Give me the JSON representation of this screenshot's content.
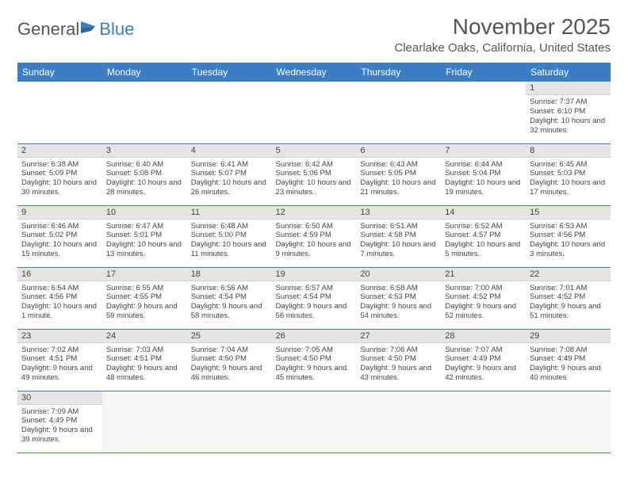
{
  "logo": {
    "text1": "General",
    "text2": "Blue"
  },
  "title": "November 2025",
  "location": "Clearlake Oaks, California, United States",
  "colors": {
    "header_bg": "#3a7fc4",
    "header_text": "#ffffff",
    "daynum_bg": "#e5e5e5",
    "row_border": "#3a7fc4",
    "text": "#444444"
  },
  "weekdays": [
    "Sunday",
    "Monday",
    "Tuesday",
    "Wednesday",
    "Thursday",
    "Friday",
    "Saturday"
  ],
  "weeks": [
    [
      null,
      null,
      null,
      null,
      null,
      null,
      {
        "n": "1",
        "sr": "7:37 AM",
        "ss": "6:10 PM",
        "dl": "10 hours and 32 minutes."
      }
    ],
    [
      {
        "n": "2",
        "sr": "6:38 AM",
        "ss": "5:09 PM",
        "dl": "10 hours and 30 minutes."
      },
      {
        "n": "3",
        "sr": "6:40 AM",
        "ss": "5:08 PM",
        "dl": "10 hours and 28 minutes."
      },
      {
        "n": "4",
        "sr": "6:41 AM",
        "ss": "5:07 PM",
        "dl": "10 hours and 26 minutes."
      },
      {
        "n": "5",
        "sr": "6:42 AM",
        "ss": "5:06 PM",
        "dl": "10 hours and 23 minutes."
      },
      {
        "n": "6",
        "sr": "6:43 AM",
        "ss": "5:05 PM",
        "dl": "10 hours and 21 minutes."
      },
      {
        "n": "7",
        "sr": "6:44 AM",
        "ss": "5:04 PM",
        "dl": "10 hours and 19 minutes."
      },
      {
        "n": "8",
        "sr": "6:45 AM",
        "ss": "5:03 PM",
        "dl": "10 hours and 17 minutes."
      }
    ],
    [
      {
        "n": "9",
        "sr": "6:46 AM",
        "ss": "5:02 PM",
        "dl": "10 hours and 15 minutes."
      },
      {
        "n": "10",
        "sr": "6:47 AM",
        "ss": "5:01 PM",
        "dl": "10 hours and 13 minutes."
      },
      {
        "n": "11",
        "sr": "6:48 AM",
        "ss": "5:00 PM",
        "dl": "10 hours and 11 minutes."
      },
      {
        "n": "12",
        "sr": "6:50 AM",
        "ss": "4:59 PM",
        "dl": "10 hours and 9 minutes."
      },
      {
        "n": "13",
        "sr": "6:51 AM",
        "ss": "4:58 PM",
        "dl": "10 hours and 7 minutes."
      },
      {
        "n": "14",
        "sr": "6:52 AM",
        "ss": "4:57 PM",
        "dl": "10 hours and 5 minutes."
      },
      {
        "n": "15",
        "sr": "6:53 AM",
        "ss": "4:56 PM",
        "dl": "10 hours and 3 minutes."
      }
    ],
    [
      {
        "n": "16",
        "sr": "6:54 AM",
        "ss": "4:56 PM",
        "dl": "10 hours and 1 minute."
      },
      {
        "n": "17",
        "sr": "6:55 AM",
        "ss": "4:55 PM",
        "dl": "9 hours and 59 minutes."
      },
      {
        "n": "18",
        "sr": "6:56 AM",
        "ss": "4:54 PM",
        "dl": "9 hours and 58 minutes."
      },
      {
        "n": "19",
        "sr": "6:57 AM",
        "ss": "4:54 PM",
        "dl": "9 hours and 56 minutes."
      },
      {
        "n": "20",
        "sr": "6:58 AM",
        "ss": "4:53 PM",
        "dl": "9 hours and 54 minutes."
      },
      {
        "n": "21",
        "sr": "7:00 AM",
        "ss": "4:52 PM",
        "dl": "9 hours and 52 minutes."
      },
      {
        "n": "22",
        "sr": "7:01 AM",
        "ss": "4:52 PM",
        "dl": "9 hours and 51 minutes."
      }
    ],
    [
      {
        "n": "23",
        "sr": "7:02 AM",
        "ss": "4:51 PM",
        "dl": "9 hours and 49 minutes."
      },
      {
        "n": "24",
        "sr": "7:03 AM",
        "ss": "4:51 PM",
        "dl": "9 hours and 48 minutes."
      },
      {
        "n": "25",
        "sr": "7:04 AM",
        "ss": "4:50 PM",
        "dl": "9 hours and 46 minutes."
      },
      {
        "n": "26",
        "sr": "7:05 AM",
        "ss": "4:50 PM",
        "dl": "9 hours and 45 minutes."
      },
      {
        "n": "27",
        "sr": "7:06 AM",
        "ss": "4:50 PM",
        "dl": "9 hours and 43 minutes."
      },
      {
        "n": "28",
        "sr": "7:07 AM",
        "ss": "4:49 PM",
        "dl": "9 hours and 42 minutes."
      },
      {
        "n": "29",
        "sr": "7:08 AM",
        "ss": "4:49 PM",
        "dl": "9 hours and 40 minutes."
      }
    ],
    [
      {
        "n": "30",
        "sr": "7:09 AM",
        "ss": "4:49 PM",
        "dl": "9 hours and 39 minutes."
      },
      null,
      null,
      null,
      null,
      null,
      null
    ]
  ],
  "labels": {
    "sunrise": "Sunrise:",
    "sunset": "Sunset:",
    "daylight": "Daylight:"
  }
}
